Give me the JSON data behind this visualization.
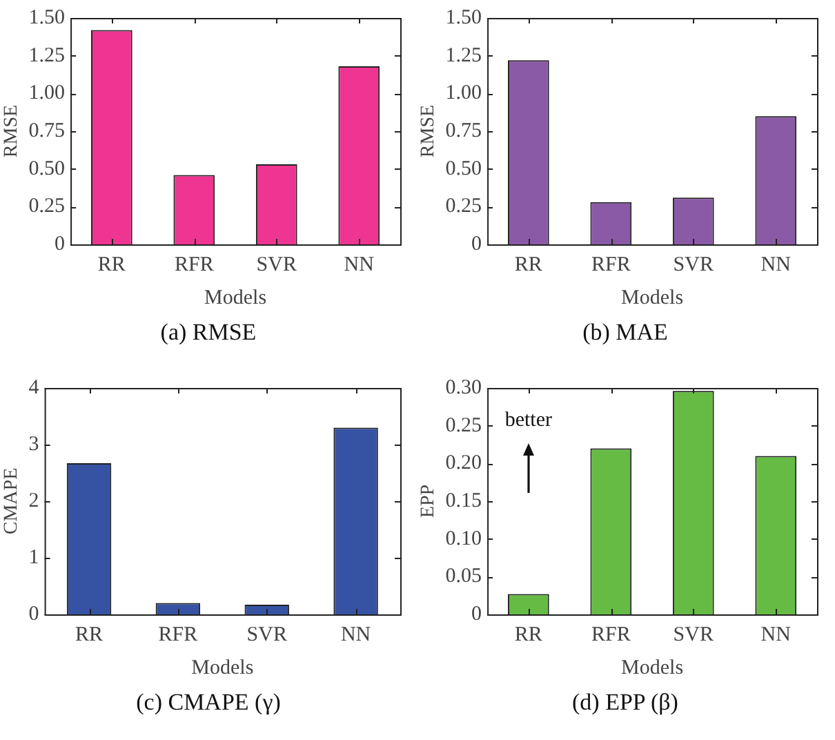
{
  "chart_data": [
    {
      "type": "bar",
      "title": "(a) RMSE",
      "xlabel": "Models",
      "ylabel": "RMSE",
      "categories": [
        "RR",
        "RFR",
        "SVR",
        "NN"
      ],
      "values": [
        1.42,
        0.46,
        0.53,
        1.18
      ],
      "color": "#ee3591",
      "ylim": [
        0,
        1.5
      ],
      "yticks": [
        0,
        {
          "value": 0.25,
          "label": "0.25"
        },
        {
          "value": 0.5,
          "label": "0.50"
        },
        {
          "value": 0.75,
          "label": "0.75"
        },
        {
          "value": 1,
          "label": "1.00"
        },
        {
          "value": 1.25,
          "label": "1.25"
        },
        {
          "value": 1.5,
          "label": "1.50"
        }
      ],
      "grid": false,
      "legend": false
    },
    {
      "type": "bar",
      "title": "(b) MAE",
      "xlabel": "Models",
      "ylabel": "RMSE",
      "categories": [
        "RR",
        "RFR",
        "SVR",
        "NN"
      ],
      "values": [
        1.22,
        0.28,
        0.31,
        0.85
      ],
      "color": "#8a5aa6",
      "ylim": [
        0,
        1.5
      ],
      "yticks": [
        0,
        {
          "value": 0.25,
          "label": "0.25"
        },
        {
          "value": 0.5,
          "label": "0.50"
        },
        {
          "value": 0.75,
          "label": "0.75"
        },
        {
          "value": 1,
          "label": "1.00"
        },
        {
          "value": 1.25,
          "label": "1.25"
        },
        {
          "value": 1.5,
          "label": "1.50"
        }
      ],
      "grid": false,
      "legend": false
    },
    {
      "type": "bar",
      "title": "(c) CMAPE (γ)",
      "xlabel": "Models",
      "ylabel": "CMAPE",
      "categories": [
        "RR",
        "RFR",
        "SVR",
        "NN"
      ],
      "values": [
        2.67,
        0.2,
        0.17,
        3.3
      ],
      "color": "#3653a3",
      "ylim": [
        0,
        4
      ],
      "yticks": [
        0,
        1,
        2,
        3,
        4
      ],
      "grid": false,
      "legend": false
    },
    {
      "type": "bar",
      "title": "(d) EPP (β)",
      "xlabel": "Models",
      "ylabel": "EPP",
      "categories": [
        "RR",
        "RFR",
        "SVR",
        "NN"
      ],
      "values": [
        0.027,
        0.22,
        0.296,
        0.21
      ],
      "color": "#66bb44",
      "ylim": [
        0,
        0.3
      ],
      "yticks": [
        0,
        {
          "value": 0.05,
          "label": "0.05"
        },
        {
          "value": 0.1,
          "label": "0.10"
        },
        {
          "value": 0.15,
          "label": "0.15"
        },
        {
          "value": 0.2,
          "label": "0.20"
        },
        {
          "value": 0.25,
          "label": "0.25"
        },
        {
          "value": 0.3,
          "label": "0.30"
        }
      ],
      "grid": false,
      "legend": false,
      "annotations": [
        "better"
      ]
    }
  ]
}
